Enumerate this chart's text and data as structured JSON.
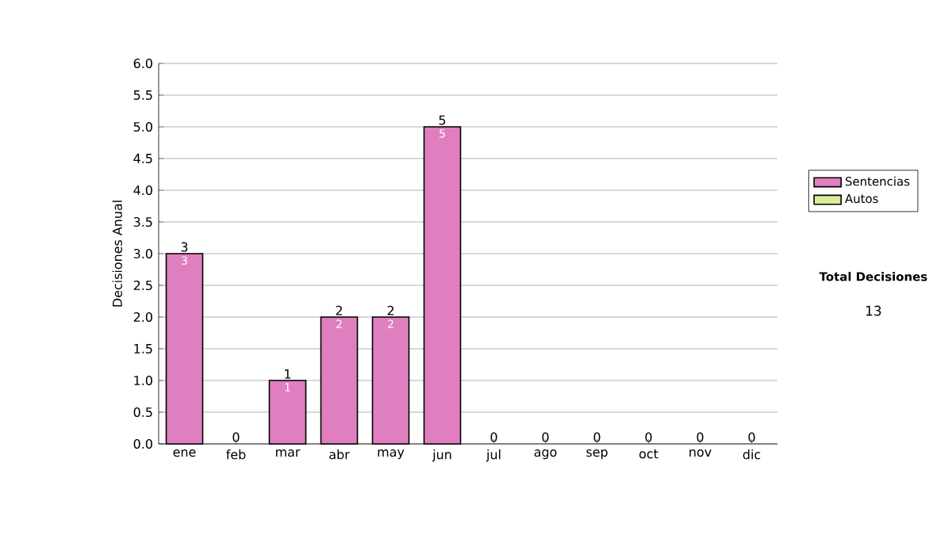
{
  "chart_data": {
    "type": "bar",
    "stacked": true,
    "ylabel": "Decisiones Anual",
    "categories": [
      "ene",
      "feb",
      "mar",
      "abr",
      "may",
      "jun",
      "jul",
      "ago",
      "sep",
      "oct",
      "nov",
      "dic"
    ],
    "series": [
      {
        "name": "Sentencias",
        "color": "#e07fc0",
        "values": [
          3,
          0,
          1,
          2,
          2,
          5,
          0,
          0,
          0,
          0,
          0,
          0
        ],
        "value_labels": [
          "3",
          null,
          "1",
          "2",
          "2",
          "5",
          null,
          null,
          null,
          null,
          null,
          null
        ]
      },
      {
        "name": "Autos",
        "color": "#d9ec9b",
        "values": [
          0,
          0,
          0,
          0,
          0,
          0,
          0,
          0,
          0,
          0,
          0,
          0
        ]
      }
    ],
    "totals": [
      "3",
      "0",
      "1",
      "2",
      "2",
      "5",
      "0",
      "0",
      "0",
      "0",
      "0",
      "0"
    ],
    "ylim": [
      0,
      6
    ],
    "yticks": [
      {
        "value": 0,
        "label": "0.0"
      },
      {
        "value": 0.5,
        "label": "0.5"
      },
      {
        "value": 1,
        "label": "1.0"
      },
      {
        "value": 1.5,
        "label": "1.5"
      },
      {
        "value": 2,
        "label": "2.0"
      },
      {
        "value": 2.5,
        "label": "2.5"
      },
      {
        "value": 3,
        "label": "3.0"
      },
      {
        "value": 3.5,
        "label": "3.5"
      },
      {
        "value": 4,
        "label": "4.0"
      },
      {
        "value": 4.5,
        "label": "4.5"
      },
      {
        "value": 5,
        "label": "5.0"
      },
      {
        "value": 5.5,
        "label": "5.5"
      },
      {
        "value": 6,
        "label": "6.0"
      }
    ],
    "grid": "y",
    "legend": "right",
    "annotations": [
      "Total Decisiones",
      "13"
    ]
  }
}
